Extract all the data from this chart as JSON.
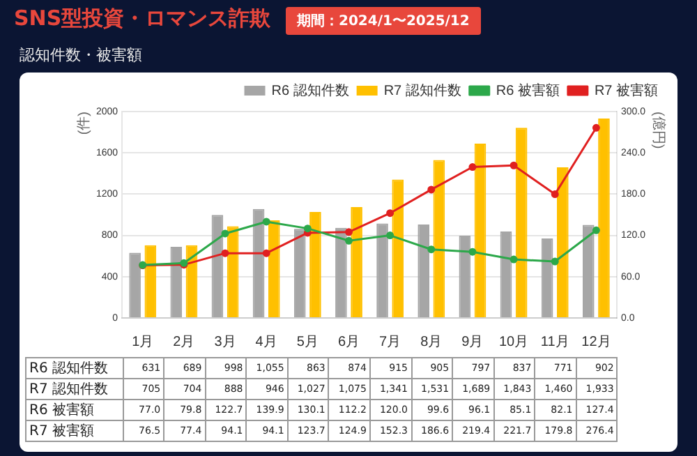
{
  "chart_data": {
    "type": "bar",
    "title": "SNS型投資・ロマンス詐欺",
    "subtitle": "認知件数・被害額",
    "annotations": [
      "期間：2024/1〜2025/12"
    ],
    "ylabel": "(件)",
    "y2label": "(億円)",
    "categories": [
      "1月",
      "2月",
      "3月",
      "4月",
      "5月",
      "6月",
      "7月",
      "8月",
      "9月",
      "10月",
      "11月",
      "12月"
    ],
    "series": [
      {
        "name": "R6 認知件数",
        "color": "#a6a6a6",
        "values": [
          631,
          689,
          998,
          1055,
          863,
          874,
          915,
          905,
          797,
          837,
          771,
          902
        ],
        "value_labels": [
          "631",
          "689",
          "998",
          "1,055",
          "863",
          "874",
          "915",
          "905",
          "797",
          "837",
          "771",
          "902"
        ]
      },
      {
        "name": "R7 認知件数",
        "color": "#ffc000",
        "values": [
          705,
          704,
          888,
          946,
          1027,
          1075,
          1341,
          1531,
          1689,
          1843,
          1460,
          1933
        ],
        "value_labels": [
          "705",
          "704",
          "888",
          "946",
          "1,027",
          "1,075",
          "1,341",
          "1,531",
          "1,689",
          "1,843",
          "1,460",
          "1,933"
        ]
      },
      {
        "name": "R6 被害額",
        "type": "line",
        "axis": "y2",
        "color": "#2ca84a",
        "values": [
          77.0,
          79.8,
          122.7,
          139.9,
          130.1,
          112.2,
          120.0,
          99.6,
          96.1,
          85.1,
          82.1,
          127.4
        ],
        "value_labels": [
          "77.0",
          "79.8",
          "122.7",
          "139.9",
          "130.1",
          "112.2",
          "120.0",
          "99.6",
          "96.1",
          "85.1",
          "82.1",
          "127.4"
        ]
      },
      {
        "name": "R7 被害額",
        "type": "line",
        "axis": "y2",
        "color": "#e02020",
        "values": [
          76.5,
          77.4,
          94.1,
          94.1,
          123.7,
          124.9,
          152.3,
          186.6,
          219.4,
          221.7,
          179.8,
          276.4
        ],
        "value_labels": [
          "76.5",
          "77.4",
          "94.1",
          "94.1",
          "123.7",
          "124.9",
          "152.3",
          "186.6",
          "219.4",
          "221.7",
          "179.8",
          "276.4"
        ]
      }
    ],
    "ylim": [
      0,
      2000
    ],
    "yticks": [
      0,
      400,
      800,
      1200,
      1600,
      2000
    ],
    "y2lim": [
      0,
      300
    ],
    "y2ticks": [
      {
        "value": 0,
        "label": "0.0"
      },
      {
        "value": 60,
        "label": "60.0"
      },
      {
        "value": 120,
        "label": "120.0"
      },
      {
        "value": 180,
        "label": "180.0"
      },
      {
        "value": 240,
        "label": "240.0"
      },
      {
        "value": 300,
        "label": "300.0"
      }
    ],
    "grid": "y",
    "legend": "top right",
    "marker": "circle",
    "line_style": "solid"
  }
}
